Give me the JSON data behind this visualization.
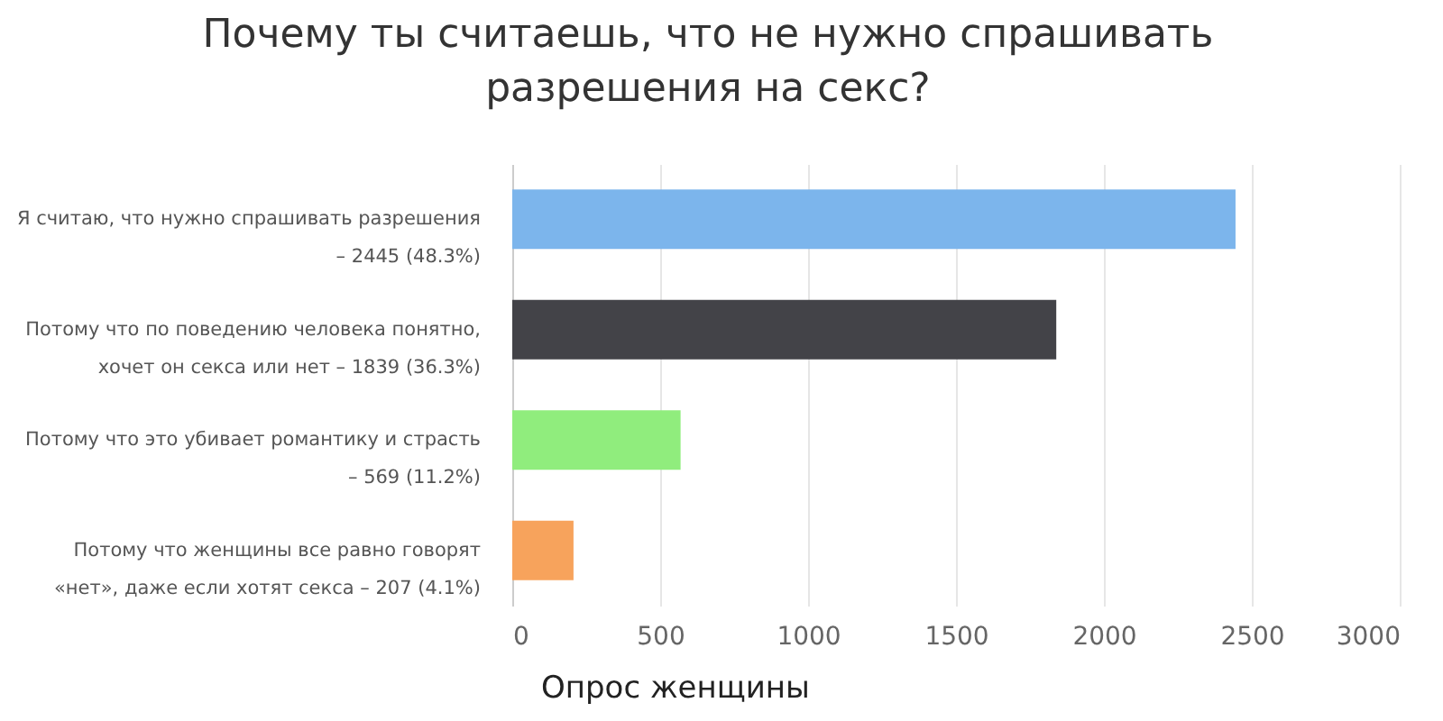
{
  "chart_data": {
    "type": "bar",
    "orientation": "horizontal",
    "title": "Почему ты считаешь, что не нужно спрашивать разрешения на секс?",
    "categories": [
      "Я считаю, что нужно спрашивать разрешения – 2445 (48.3%)",
      "Потому что по поведению человека понятно, хочет он секса или нет – 1839 (36.3%)",
      "Потому что это убивает романтику и страсть – 569 (11.2%)",
      "Потому что женщины все равно говорят «нет», даже если хотят секса – 207 (4.1%)"
    ],
    "values": [
      2445,
      1839,
      569,
      207
    ],
    "colors": [
      "#7cb5ec",
      "#434348",
      "#90ed7d",
      "#f7a35c"
    ],
    "xlim": [
      0,
      3000
    ],
    "xticks": [
      0,
      500,
      1000,
      1500,
      2000,
      2500,
      3000
    ],
    "grid": "x",
    "legend": false,
    "annotations": [
      "Опрос женщины"
    ]
  }
}
